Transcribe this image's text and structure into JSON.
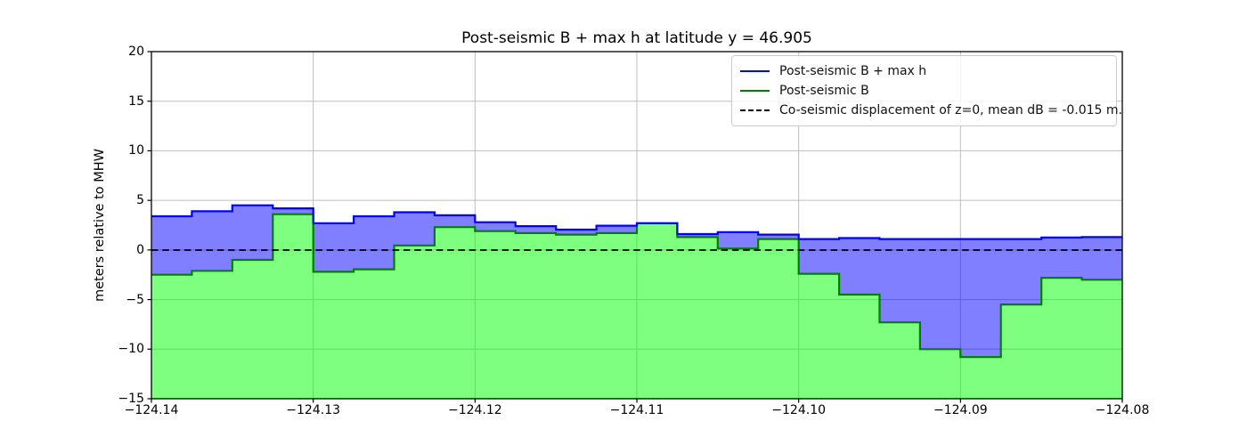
{
  "chart_data": {
    "type": "area",
    "title": "Post-seismic B + max h at latitude y = 46.905",
    "xlabel": "",
    "ylabel": "meters relative to MHW",
    "xlim": [
      -124.14,
      -124.08
    ],
    "ylim": [
      -15,
      20
    ],
    "grid": true,
    "legend_position": "upper right",
    "xticks": [
      {
        "value": -124.14,
        "label": "−124.14"
      },
      {
        "value": -124.13,
        "label": "−124.13"
      },
      {
        "value": -124.12,
        "label": "−124.12"
      },
      {
        "value": -124.11,
        "label": "−124.11"
      },
      {
        "value": -124.1,
        "label": "−124.10"
      },
      {
        "value": -124.09,
        "label": "−124.09"
      },
      {
        "value": -124.08,
        "label": "−124.08"
      }
    ],
    "yticks": [
      {
        "value": 20,
        "label": "20"
      },
      {
        "value": 15,
        "label": "15"
      },
      {
        "value": 10,
        "label": "10"
      },
      {
        "value": 5,
        "label": "5"
      },
      {
        "value": 0,
        "label": "0"
      },
      {
        "value": -5,
        "label": "−5"
      },
      {
        "value": -10,
        "label": "−10"
      },
      {
        "value": -15,
        "label": "−15"
      }
    ],
    "bin_edges": [
      -124.14,
      -124.1375,
      -124.135,
      -124.1325,
      -124.13,
      -124.1275,
      -124.125,
      -124.1225,
      -124.12,
      -124.1175,
      -124.115,
      -124.1125,
      -124.11,
      -124.1075,
      -124.105,
      -124.1025,
      -124.1,
      -124.0975,
      -124.095,
      -124.0925,
      -124.09,
      -124.0875,
      -124.085,
      -124.0825,
      -124.08
    ],
    "series": [
      {
        "name": "Post-seismic B + max h",
        "color": "#0000ff",
        "fill": "rgba(0,0,255,0.5)",
        "values": [
          3.4,
          3.9,
          4.5,
          4.2,
          2.7,
          3.4,
          3.8,
          3.5,
          2.8,
          2.4,
          2.05,
          2.45,
          2.7,
          1.6,
          1.8,
          1.55,
          1.1,
          1.2,
          1.1,
          1.1,
          1.1,
          1.1,
          1.25,
          1.3
        ]
      },
      {
        "name": "Post-seismic B",
        "color": "#008000",
        "fill": "rgba(0,255,0,0.5)",
        "values": [
          -2.5,
          -2.1,
          -1.0,
          3.6,
          -2.2,
          -1.95,
          0.45,
          2.3,
          1.9,
          1.7,
          1.55,
          1.7,
          2.7,
          1.3,
          0.15,
          1.1,
          -2.4,
          -4.5,
          -7.3,
          -10.0,
          -10.8,
          -5.5,
          -2.8,
          -3.0
        ]
      }
    ],
    "dashed_line": {
      "label": "Co-seismic displacement of z=0, mean dB = -0.015 m.",
      "value": -0.015,
      "color": "#000000",
      "style": "dashed"
    },
    "legend": [
      {
        "label": "Post-seismic B + max h",
        "swatch": "blue-solid"
      },
      {
        "label": "Post-seismic B",
        "swatch": "green-solid"
      },
      {
        "label": "Co-seismic displacement of z=0, mean dB = -0.015 m.",
        "swatch": "black-dashed"
      }
    ],
    "grid_color": "#bdbdbd",
    "frame_color": "#000000"
  }
}
